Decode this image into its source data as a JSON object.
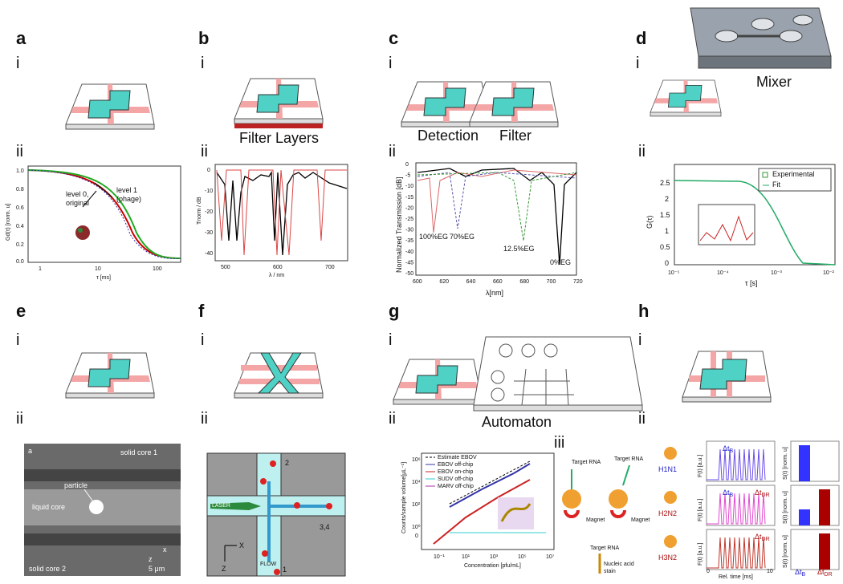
{
  "panels": {
    "a": {
      "letter": "a",
      "sub1": "i",
      "sub2": "ii",
      "ylabel": "Gd(τ) [norm. u]",
      "xlabel": "τ [ms]",
      "xticks": [
        "1",
        "10",
        "100"
      ],
      "yticks": [
        "1.0",
        "0.8",
        "0.6",
        "0.4",
        "0.2",
        "0.0"
      ],
      "notes": [
        "level 0,",
        "original",
        "level 1",
        "(phage)"
      ]
    },
    "b": {
      "letter": "b",
      "sub1": "i",
      "sub2": "ii",
      "caption": "Filter Layers",
      "ylabel": "Tnorm / dB",
      "xlabel": "λ / nm",
      "xticks": [
        "500",
        "600",
        "700"
      ],
      "yticks": [
        "0",
        "-10",
        "-20",
        "-30",
        "-40"
      ]
    },
    "c": {
      "letter": "c",
      "sub1": "i",
      "sub2": "ii",
      "captions": [
        "Detection",
        "Filter"
      ],
      "ylabel": "Normalized Transmission [dB]",
      "xlabel": "λ[nm]",
      "xticks": [
        "600",
        "620",
        "640",
        "660",
        "680",
        "700",
        "720"
      ],
      "yticks": [
        "0",
        "-5",
        "-10",
        "-15",
        "-20",
        "-25",
        "-30",
        "-35",
        "-40",
        "-45",
        "-50"
      ],
      "notes": [
        "100%EG",
        "70%EG",
        "12.5%EG",
        "0%EG"
      ]
    },
    "d": {
      "letter": "d",
      "sub1": "i",
      "sub2": "ii",
      "caption": "Mixer",
      "ylabel": "G(τ)",
      "xlabel": "τ [s]",
      "xticks": [
        "10⁻⁵",
        "10⁻⁴",
        "10⁻³",
        "10⁻²"
      ],
      "yticks": [
        "2.5",
        "2",
        "1.5",
        "1",
        "0.5",
        "0"
      ],
      "legend": [
        "Experimental",
        "Fit"
      ]
    },
    "e": {
      "letter": "e",
      "sub1": "i",
      "sub2": "ii",
      "texts": [
        "a",
        "solid core 1",
        "particle",
        "liquid core",
        "solid core 2",
        "5 μm",
        "x",
        "z"
      ]
    },
    "f": {
      "letter": "f",
      "sub1": "i",
      "sub2": "ii",
      "texts": [
        "LASER",
        "2",
        "3,4",
        "FLOW",
        "1",
        "X",
        "Z"
      ]
    },
    "g": {
      "letter": "g",
      "sub1": "i",
      "sub2": "ii",
      "sub3": "iii",
      "caption": "Automaton",
      "ylabel": "Counts/sample volume[μL⁻¹]",
      "xlabel": "Concentration [pfu/mL]",
      "xticks": [
        "10⁻¹",
        "10¹",
        "10³",
        "10⁵",
        "10⁷"
      ],
      "yticks": [
        "10⁶",
        "10⁴",
        "10²",
        "10⁰",
        "0"
      ],
      "legend": [
        "Estimate EBOV",
        "EBOV off-chip",
        "EBOV on-chip",
        "SUDV off-chip",
        "MARV off-chip"
      ],
      "texts": [
        "Target RNA",
        "Target RNA",
        "Magnet",
        "Magnet",
        "Target RNA",
        "Nucleic acid",
        "stain"
      ]
    },
    "h": {
      "letter": "h",
      "sub1": "i",
      "sub2": "ii",
      "strains": [
        "H1N1",
        "H2N2",
        "H3N2"
      ],
      "dtb": "Δt",
      "dtb_sub": "B",
      "dtdr": "Δt",
      "dtdr_sub": "DR",
      "ylabel1": "F(t) [a.u.]",
      "ylabel2": "S(t) [norm. u]",
      "xlabel": "Rel. time [ms]",
      "xticks": [
        "0",
        "10"
      ]
    }
  }
}
